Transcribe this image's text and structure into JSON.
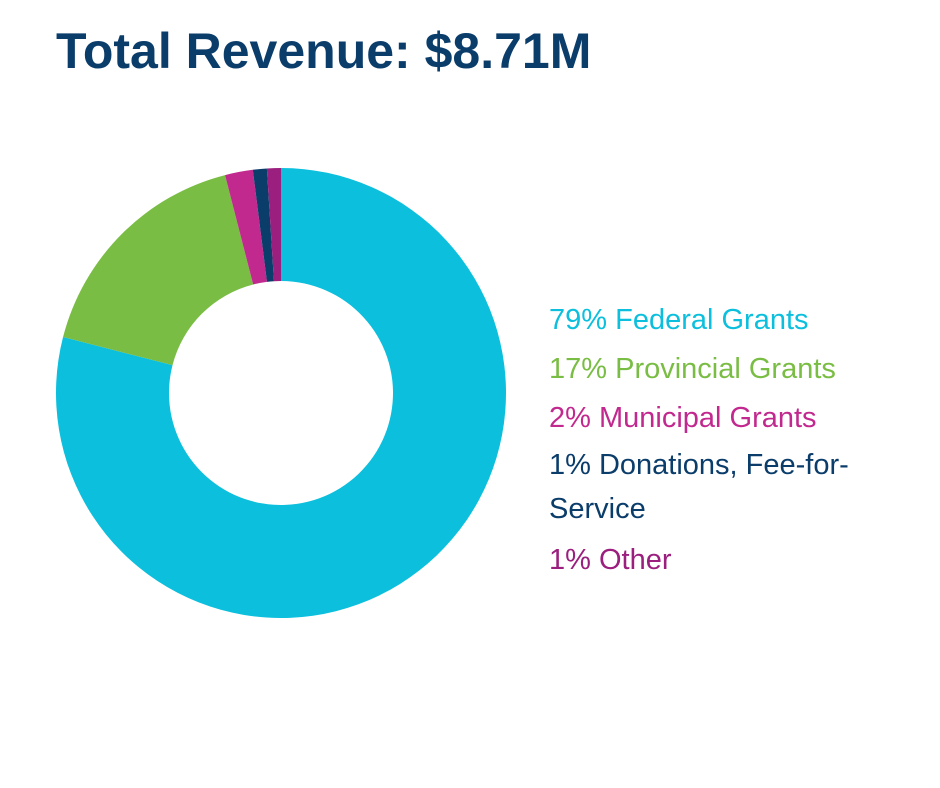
{
  "chart_data": {
    "type": "pie",
    "variant": "donut",
    "title": "Total Revenue: $8.71M",
    "series": [
      {
        "name": "Federal Grants",
        "value": 79,
        "label": "79% Federal Grants",
        "color": "#0bbfdd"
      },
      {
        "name": "Provincial Grants",
        "value": 17,
        "label": "17% Provincial Grants",
        "color": "#7abd44"
      },
      {
        "name": "Municipal Grants",
        "value": 2,
        "label": "2% Municipal Grants",
        "color": "#c2298f"
      },
      {
        "name": "Donations, Fee-for-Service",
        "value": 1,
        "label": "1% Donations, Fee-for-Service",
        "color": "#0b3d6b"
      },
      {
        "name": "Other",
        "value": 1,
        "label": "1% Other",
        "color": "#9b1f7e"
      }
    ],
    "start_angle": "top",
    "direction": "clockwise",
    "legend_position": "right"
  },
  "colors": {
    "title": "#0b3d6b",
    "background": "#ffffff"
  }
}
